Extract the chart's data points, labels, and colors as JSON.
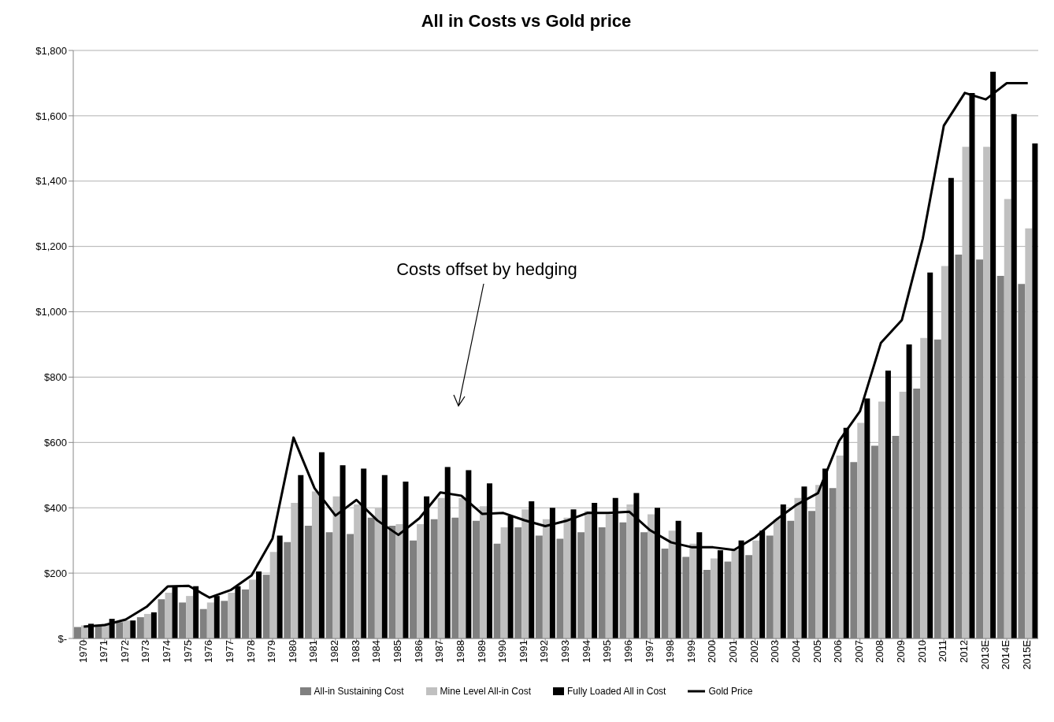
{
  "chart_data": {
    "type": "bar",
    "title": "All in Costs vs Gold price",
    "categories": [
      "1970",
      "1971",
      "1972",
      "1973",
      "1974",
      "1975",
      "1976",
      "1977",
      "1978",
      "1979",
      "1980",
      "1981",
      "1982",
      "1983",
      "1984",
      "1985",
      "1986",
      "1987",
      "1988",
      "1989",
      "1990",
      "1991",
      "1992",
      "1993",
      "1994",
      "1995",
      "1996",
      "1997",
      "1998",
      "1999",
      "2000",
      "2001",
      "2002",
      "2003",
      "2004",
      "2005",
      "2006",
      "2007",
      "2008",
      "2009",
      "2010",
      "2011",
      "2012",
      "2013E",
      "2014E",
      "2015E"
    ],
    "series": [
      {
        "name": "All-in Sustaining Cost",
        "color": "#808080",
        "values": [
          35,
          40,
          50,
          65,
          120,
          110,
          90,
          115,
          150,
          195,
          295,
          345,
          325,
          320,
          370,
          345,
          300,
          365,
          370,
          360,
          290,
          340,
          315,
          305,
          325,
          340,
          355,
          325,
          275,
          250,
          210,
          235,
          255,
          315,
          360,
          390,
          460,
          540,
          590,
          620,
          765,
          915,
          1175,
          1160,
          1110,
          1085
        ]
      },
      {
        "name": "Mine Level All-in Cost",
        "color": "#c0c0c0",
        "values": [
          40,
          45,
          55,
          75,
          140,
          130,
          110,
          140,
          180,
          265,
          415,
          450,
          435,
          410,
          400,
          350,
          350,
          430,
          430,
          405,
          340,
          395,
          365,
          370,
          390,
          380,
          410,
          380,
          330,
          290,
          245,
          270,
          300,
          365,
          430,
          470,
          560,
          660,
          725,
          755,
          920,
          1140,
          1505,
          1505,
          1345,
          1255
        ]
      },
      {
        "name": "Fully Loaded All in Cost",
        "color": "#000000",
        "values": [
          45,
          60,
          55,
          80,
          160,
          160,
          130,
          160,
          205,
          315,
          500,
          570,
          530,
          520,
          500,
          480,
          435,
          525,
          515,
          475,
          375,
          420,
          400,
          395,
          415,
          430,
          445,
          400,
          360,
          325,
          270,
          300,
          330,
          410,
          465,
          520,
          645,
          735,
          820,
          900,
          1120,
          1410,
          1670,
          1735,
          1605,
          1515
        ]
      },
      {
        "name": "Gold Price",
        "type": "line",
        "color": "#000000",
        "values": [
          36,
          41,
          58,
          97,
          159,
          161,
          125,
          148,
          193,
          306,
          615,
          460,
          376,
          424,
          361,
          317,
          368,
          447,
          437,
          381,
          384,
          362,
          344,
          360,
          384,
          384,
          388,
          331,
          294,
          279,
          279,
          271,
          310,
          363,
          410,
          445,
          604,
          695,
          905,
          975,
          1225,
          1570,
          1670,
          1650,
          1700,
          1700
        ]
      }
    ],
    "ylim": [
      0,
      1800
    ],
    "yticks": [
      {
        "value": 0,
        "label": "$-"
      },
      {
        "value": 200,
        "label": "$200"
      },
      {
        "value": 400,
        "label": "$400"
      },
      {
        "value": 600,
        "label": "$600"
      },
      {
        "value": 800,
        "label": "$800"
      },
      {
        "value": 1000,
        "label": "$1,000"
      },
      {
        "value": 1200,
        "label": "$1,200"
      },
      {
        "value": 1400,
        "label": "$1,400"
      },
      {
        "value": 1600,
        "label": "$1,600"
      },
      {
        "value": 1800,
        "label": "$1,800"
      }
    ],
    "grid": "y",
    "legend": "bottom",
    "marker": "none",
    "annotations": [
      "Costs offset by hedging"
    ]
  }
}
